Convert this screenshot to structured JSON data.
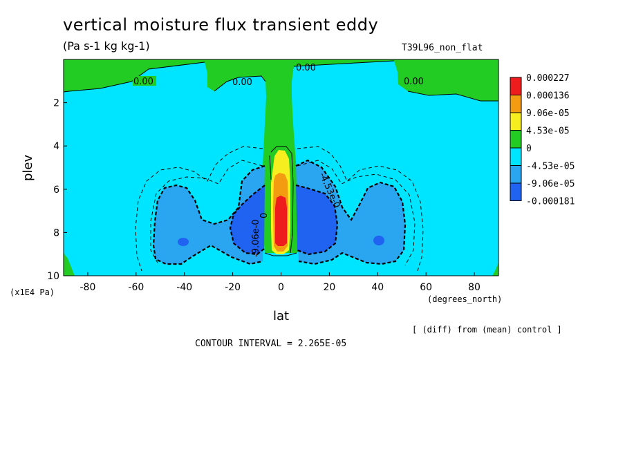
{
  "chart_data": {
    "type": "heatmap",
    "title": "vertical moisture flux transient eddy",
    "units": "(Pa s-1 kg kg-1)",
    "run_label": "T39L96_non_flat",
    "xlabel": "lat",
    "x_unit": "(degrees_north)",
    "ylabel": "plev",
    "y_unit": "(x1E4 Pa)",
    "xlim": [
      -90,
      90
    ],
    "ylim": [
      10,
      0
    ],
    "x_ticks": [
      "-80",
      "-60",
      "-40",
      "-20",
      "0",
      "20",
      "40",
      "60",
      "80"
    ],
    "y_ticks": [
      "2",
      "4",
      "6",
      "8",
      "10"
    ],
    "contour_labels": [
      "0.00",
      "0.00",
      "0.00",
      "0.00",
      "-4.53e-0",
      "-9.06e-0",
      "0"
    ],
    "legend": {
      "position": "right",
      "levels": [
        "0.000227",
        "0.000136",
        "9.06e-05",
        "4.53e-05",
        "0",
        "-4.53e-05",
        "-9.06e-05",
        "-0.000181"
      ],
      "colors": [
        "#ee1c1c",
        "#f39c12",
        "#f7ee1f",
        "#22cc22",
        "#00e5ff",
        "#2aa5f0",
        "#1f63f0"
      ]
    },
    "diff_note": "[ (diff) from (mean) control ]",
    "contour_interval": "CONTOUR INTERVAL = 2.265E-05"
  }
}
